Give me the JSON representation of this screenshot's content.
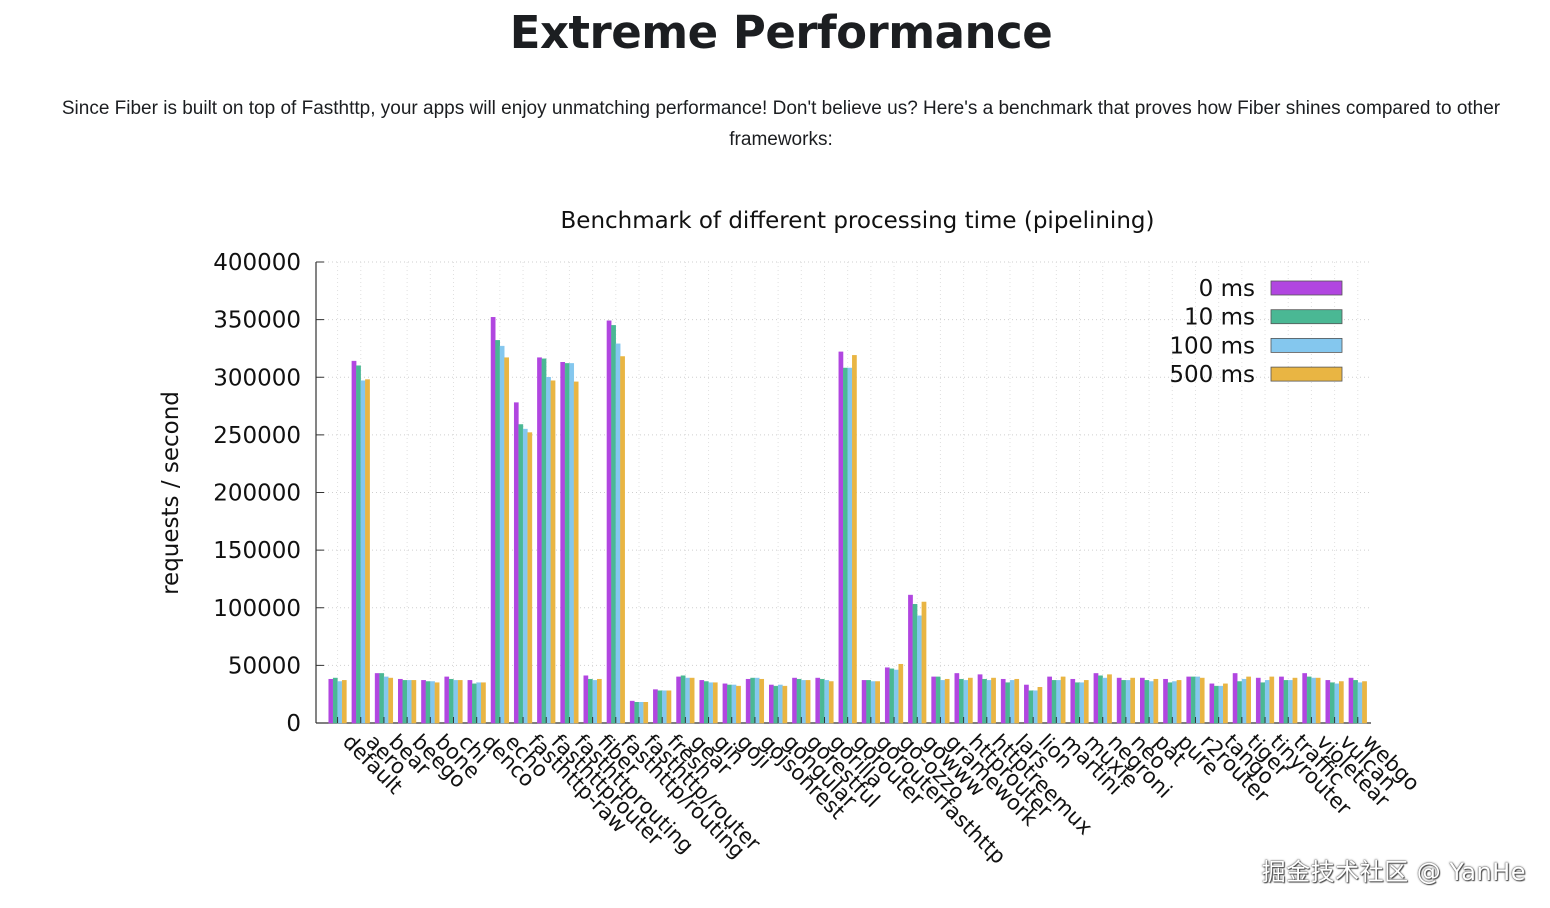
{
  "page": {
    "title": "Extreme Performance",
    "intro": "Since Fiber is built on top of Fasthttp, your apps will enjoy unmatching performance! Don't believe us? Here's a benchmark that proves how Fiber shines compared to other frameworks:"
  },
  "watermark": "掘金技术社区 @ YanHe",
  "chart_data": {
    "type": "bar",
    "title": "Benchmark of different processing time (pipelining)",
    "xlabel": "",
    "ylabel": "requests / second",
    "ylim": [
      0,
      400000
    ],
    "yticks": [
      0,
      50000,
      100000,
      150000,
      200000,
      250000,
      300000,
      350000,
      400000
    ],
    "grid": true,
    "legend_position": "top-right",
    "categories": [
      "default",
      "aero",
      "bear",
      "beego",
      "bone",
      "chi",
      "denco",
      "echo",
      "fasthttp-raw",
      "fasthttprouter",
      "fasthttprouting",
      "fiber",
      "fasthttp/routing",
      "fasthttp/router",
      "fresh",
      "gear",
      "gin",
      "goji",
      "gojsonrest",
      "gongular",
      "gorestful",
      "gorilla",
      "gorouter",
      "gorouterfasthttp",
      "go-ozzo",
      "gowww",
      "gramework",
      "httprouter",
      "httptreemux",
      "lars",
      "lion",
      "martini",
      "muxie",
      "negroni",
      "neo",
      "pat",
      "pure",
      "r2router",
      "tango",
      "tiger",
      "tinyrouter",
      "traffic",
      "violetear",
      "vulcan",
      "webgo"
    ],
    "series": [
      {
        "name": "0 ms",
        "color": "#b146e0",
        "values": [
          38000,
          314000,
          43000,
          38000,
          37000,
          40000,
          37000,
          352000,
          278000,
          317000,
          313000,
          41000,
          349000,
          19000,
          29000,
          40000,
          37000,
          34000,
          38000,
          33000,
          39000,
          39000,
          322000,
          37000,
          48000,
          111000,
          40000,
          43000,
          42000,
          38000,
          33000,
          40000,
          38000,
          43000,
          39000,
          39000,
          38000,
          40000,
          34000,
          43000,
          39000,
          40000,
          43000,
          37000,
          39000
        ]
      },
      {
        "name": "10 ms",
        "color": "#4ab894",
        "values": [
          39000,
          310000,
          43000,
          37000,
          36000,
          38000,
          34000,
          332000,
          259000,
          316000,
          312000,
          38000,
          345000,
          18000,
          28000,
          41000,
          36000,
          33000,
          39000,
          32000,
          38000,
          38000,
          308000,
          37000,
          47000,
          103000,
          40000,
          38000,
          38000,
          35000,
          28000,
          37000,
          35000,
          41000,
          37000,
          37000,
          35000,
          40000,
          32000,
          36000,
          35000,
          37000,
          40000,
          35000,
          37000
        ]
      },
      {
        "name": "100 ms",
        "color": "#84c7ee",
        "values": [
          36000,
          297000,
          40000,
          37000,
          36000,
          37000,
          35000,
          327000,
          255000,
          300000,
          312000,
          37000,
          329000,
          18000,
          28000,
          39000,
          35000,
          33000,
          39000,
          33000,
          37000,
          37000,
          308000,
          36000,
          46000,
          93000,
          37000,
          37000,
          37000,
          37000,
          28000,
          37000,
          35000,
          39000,
          37000,
          36000,
          36000,
          40000,
          32000,
          38000,
          37000,
          37000,
          39000,
          34000,
          35000
        ]
      },
      {
        "name": "500 ms",
        "color": "#e9b543",
        "values": [
          37000,
          298000,
          39000,
          37000,
          35000,
          37000,
          35000,
          317000,
          252000,
          297000,
          296000,
          38000,
          318000,
          18000,
          28000,
          39000,
          35000,
          32000,
          38000,
          32000,
          37000,
          36000,
          319000,
          36000,
          51000,
          105000,
          38000,
          39000,
          39000,
          38000,
          31000,
          40000,
          37000,
          42000,
          39000,
          38000,
          37000,
          39000,
          34000,
          40000,
          40000,
          39000,
          39000,
          36000,
          36000
        ]
      }
    ]
  }
}
